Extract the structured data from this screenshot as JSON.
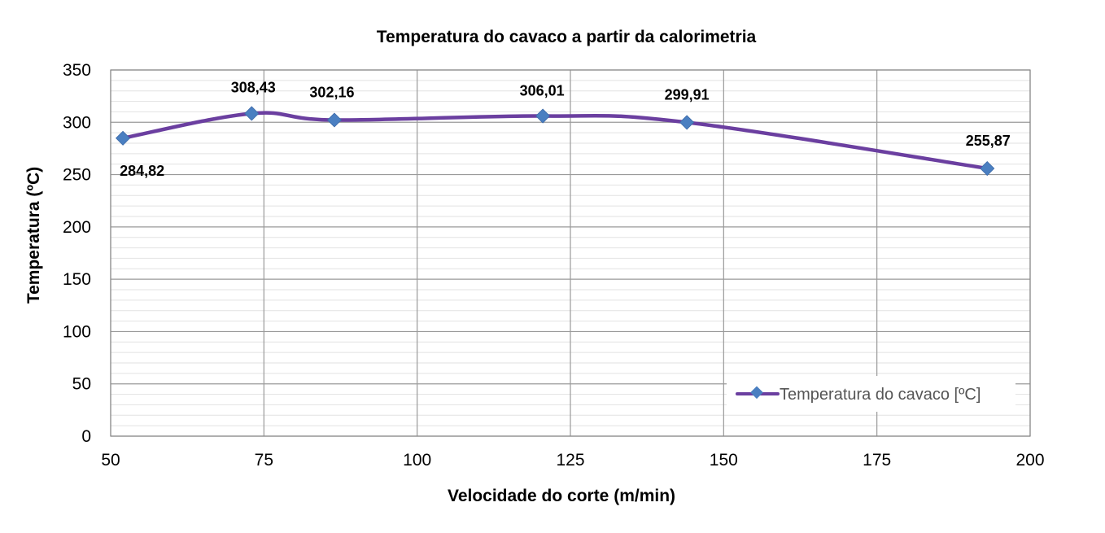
{
  "chart_data": {
    "type": "line",
    "title": "Temperatura do cavaco a partir da calorimetria",
    "xlabel": "Velocidade do corte (m/min)",
    "ylabel": "Temperatura (ºC)",
    "xlim": [
      50,
      200
    ],
    "ylim": [
      0,
      350
    ],
    "x_ticks": [
      50,
      75,
      100,
      125,
      150,
      175,
      200
    ],
    "y_ticks": [
      0,
      50,
      100,
      150,
      200,
      250,
      300,
      350
    ],
    "grid": true,
    "legend_position": "bottom-right",
    "series": [
      {
        "name": "Temperatura do cavaco [ºC]",
        "color": "#6b3fa0",
        "marker_color": "#4a7fc1",
        "x": [
          52,
          73,
          86.5,
          120.5,
          144,
          193
        ],
        "y": [
          284.82,
          308.43,
          302.16,
          306.01,
          299.91,
          255.87
        ],
        "labels": [
          "284,82",
          "308,43",
          "302,16",
          "306,01",
          "299,91",
          "255,87"
        ]
      }
    ]
  }
}
